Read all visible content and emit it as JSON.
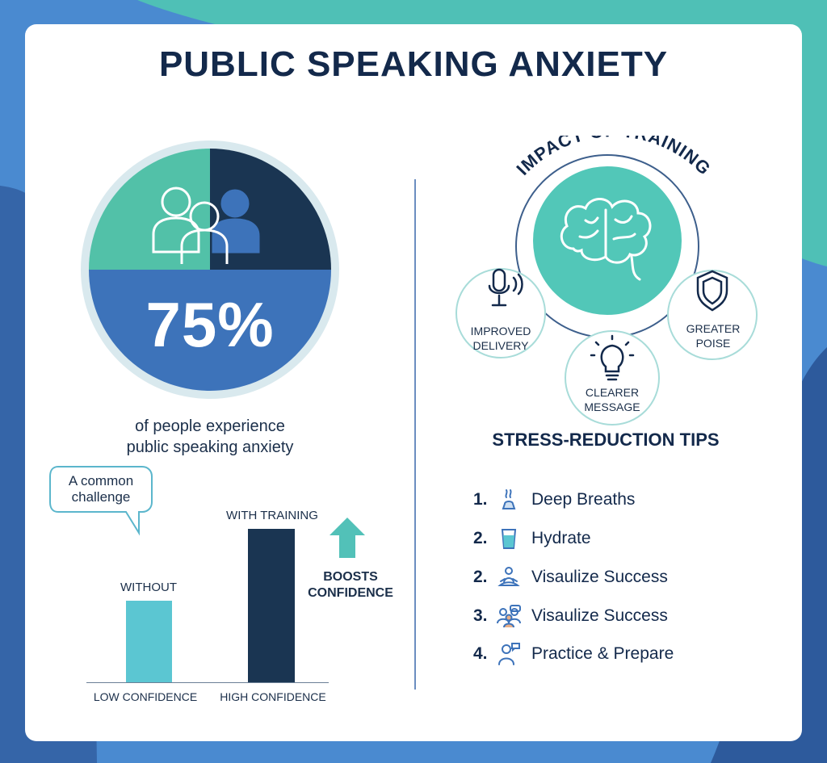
{
  "title": "PUBLIC SPEAKING ANXIETY",
  "colors": {
    "navy": "#13294b",
    "dark_navy": "#1a3552",
    "teal": "#52c1a8",
    "blue": "#3d73ba",
    "light_teal": "#5bc6d2",
    "pale_teal": "#d5ecea"
  },
  "stat": {
    "value": "75%",
    "percent": 75,
    "caption_line1": "of people experience",
    "caption_line2": "public speaking anxiety",
    "icon": "people-group-icon"
  },
  "bubble": {
    "line1": "A common",
    "line2": "challenge"
  },
  "bars": {
    "items": [
      {
        "label": "WITHOUT",
        "axis_label": "LOW CONFIDENCE"
      },
      {
        "label": "WITH TRAINING",
        "axis_label": "HIGH CONFIDENCE"
      }
    ],
    "note_line1": "BOOSTS",
    "note_line2": "CONFIDENCE"
  },
  "impact": {
    "title": "IMPACT OF TRAINING",
    "center_icon": "brain-icon",
    "nodes": [
      {
        "line1": "IMPROVED",
        "line2": "DELIVERY",
        "icon": "microphone-icon"
      },
      {
        "line1": "CLEARER",
        "line2": "MESSAGE",
        "icon": "lightbulb-icon"
      },
      {
        "line1": "GREATER",
        "line2": "POISE",
        "icon": "shield-icon"
      }
    ]
  },
  "tips": {
    "title": "STRESS-REDUCTION TIPS",
    "items": [
      {
        "num": "1.",
        "text": "Deep Breaths",
        "icon": "breath-icon"
      },
      {
        "num": "2.",
        "text": "Hydrate",
        "icon": "water-glass-icon"
      },
      {
        "num": "2.",
        "text": "Visaulize Success",
        "icon": "meditation-icon"
      },
      {
        "num": "3.",
        "text": "Visaulize Success",
        "icon": "group-icon"
      },
      {
        "num": "4.",
        "text": "Practice & Prepare",
        "icon": "speaker-icon"
      }
    ]
  }
}
